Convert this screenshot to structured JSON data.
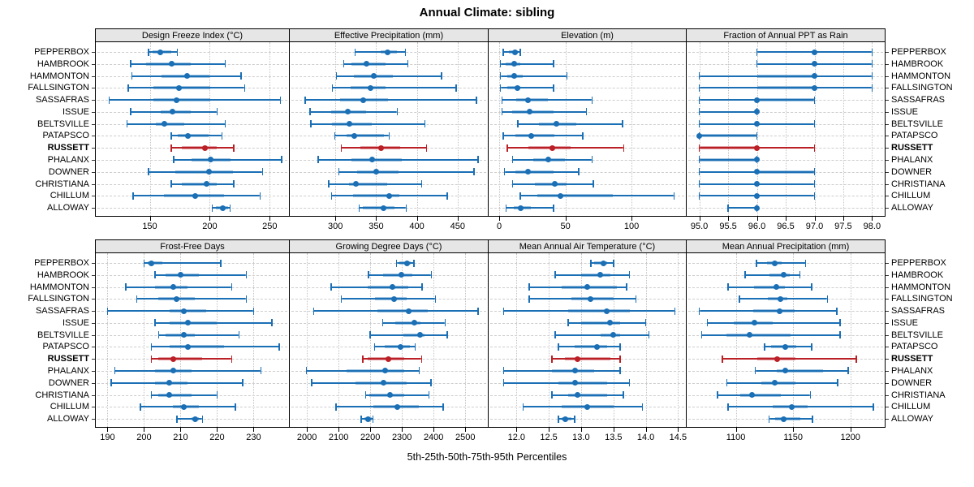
{
  "chart_data": {
    "type": "dotplot-trellis",
    "title": "Annual Climate: sibling",
    "footer": "5th-25th-50th-75th-95th Percentiles",
    "percentiles": [
      "5th",
      "25th",
      "50th",
      "75th",
      "95th"
    ],
    "legend_position": "none",
    "grid": "dashed horizontal per site, dotted vertical at ticks",
    "sites": [
      "PEPPERBOX",
      "HAMBROOK",
      "HAMMONTON",
      "FALLSINGTON",
      "SASSAFRAS",
      "ISSUE",
      "BELTSVILLE",
      "PATAPSCO",
      "RUSSETT",
      "PHALANX",
      "DOWNER",
      "CHRISTIANA",
      "CHILLUM",
      "ALLOWAY"
    ],
    "highlight_site": "RUSSETT",
    "colors": {
      "point": "#1b6fb5",
      "band": "rgba(27,111,181,0.42)",
      "highlight_point": "#bb2026",
      "highlight_band": "rgba(187,32,38,0.42)",
      "strip_bg": "#e6e6e6",
      "border": "#000000"
    },
    "panels": [
      {
        "title": "Design Freeze Index (°C)",
        "grid_row": 0,
        "grid_col": 0,
        "xlim": [
          105,
          266
        ],
        "ticks": [
          150,
          200,
          250
        ],
        "tick_labels": [
          "150",
          "200",
          "250"
        ],
        "values": [
          [
            149,
            152,
            159,
            168,
            173
          ],
          [
            134,
            147,
            168,
            184,
            213
          ],
          [
            135,
            160,
            181,
            200,
            226
          ],
          [
            132,
            153,
            174,
            200,
            229
          ],
          [
            116,
            153,
            172,
            200,
            259
          ],
          [
            134,
            159,
            169,
            184,
            206
          ],
          [
            131,
            155,
            162,
            179,
            213
          ],
          [
            168,
            173,
            182,
            199,
            210
          ],
          [
            168,
            177,
            196,
            206,
            220
          ],
          [
            170,
            185,
            201,
            217,
            260
          ],
          [
            149,
            171,
            199,
            219,
            244
          ],
          [
            168,
            177,
            197,
            206,
            220
          ],
          [
            136,
            162,
            188,
            212,
            242
          ],
          [
            202,
            205,
            211,
            215,
            217
          ]
        ]
      },
      {
        "title": "Effective Precipitation (mm)",
        "grid_row": 0,
        "grid_col": 1,
        "xlim": [
          244,
          487
        ],
        "ticks": [
          300,
          350,
          400,
          450
        ],
        "tick_labels": [
          "300",
          "350",
          "400",
          "450"
        ],
        "values": [
          [
            324,
            355,
            364,
            375,
            386
          ],
          [
            310,
            320,
            338,
            362,
            389
          ],
          [
            301,
            323,
            347,
            371,
            430
          ],
          [
            296,
            319,
            343,
            362,
            448
          ],
          [
            263,
            306,
            334,
            365,
            473
          ],
          [
            269,
            295,
            315,
            338,
            376
          ],
          [
            270,
            296,
            317,
            345,
            410
          ],
          [
            299,
            314,
            323,
            360,
            366
          ],
          [
            307,
            331,
            356,
            379,
            412
          ],
          [
            279,
            320,
            345,
            381,
            475
          ],
          [
            304,
            327,
            350,
            378,
            470
          ],
          [
            292,
            317,
            325,
            364,
            406
          ],
          [
            295,
            322,
            366,
            379,
            437
          ],
          [
            329,
            334,
            359,
            372,
            387
          ]
        ]
      },
      {
        "title": "Elevation (m)",
        "grid_row": 0,
        "grid_col": 2,
        "xlim": [
          -8,
          141
        ],
        "ticks": [
          0,
          50,
          100
        ],
        "tick_labels": [
          "0",
          "50",
          "100"
        ],
        "values": [
          [
            3,
            7,
            12,
            14,
            16
          ],
          [
            1,
            5,
            11,
            16,
            41
          ],
          [
            1,
            6,
            11,
            18,
            51
          ],
          [
            1,
            6,
            14,
            16,
            41
          ],
          [
            2,
            13,
            22,
            37,
            70
          ],
          [
            2,
            10,
            23,
            41,
            66
          ],
          [
            14,
            30,
            43,
            58,
            93
          ],
          [
            3,
            12,
            24,
            42,
            63
          ],
          [
            6,
            22,
            40,
            54,
            94
          ],
          [
            10,
            26,
            37,
            50,
            70
          ],
          [
            4,
            12,
            22,
            41,
            60
          ],
          [
            10,
            27,
            42,
            51,
            71
          ],
          [
            16,
            29,
            46,
            86,
            132
          ],
          [
            5,
            11,
            16,
            24,
            41
          ]
        ]
      },
      {
        "title": "Fraction of Annual PPT as Rain",
        "grid_row": 0,
        "grid_col": 3,
        "xlim": [
          94.78,
          98.22
        ],
        "ticks": [
          95.0,
          95.5,
          96.0,
          96.5,
          97.0,
          97.5,
          98.0
        ],
        "tick_labels": [
          "95.0",
          "95.5",
          "96.0",
          "96.5",
          "97.0",
          "97.5",
          "98.0"
        ],
        "values": [
          [
            96,
            97,
            97,
            97,
            98
          ],
          [
            96,
            97,
            97,
            97,
            98
          ],
          [
            95,
            96,
            97,
            97,
            98
          ],
          [
            95,
            96,
            97,
            97,
            98
          ],
          [
            95,
            96,
            96,
            97,
            97
          ],
          [
            95,
            96,
            96,
            96,
            96
          ],
          [
            95,
            96,
            96,
            96,
            97
          ],
          [
            95,
            95,
            95,
            96,
            96
          ],
          [
            95,
            95,
            96,
            96,
            97
          ],
          [
            95,
            95,
            96,
            96,
            96
          ],
          [
            95,
            96,
            96,
            97,
            97
          ],
          [
            95,
            96,
            96,
            96,
            97
          ],
          [
            95,
            96,
            96,
            96,
            97
          ],
          [
            95.5,
            96,
            96,
            96,
            96
          ]
        ]
      },
      {
        "title": "Frost-Free Days",
        "grid_row": 1,
        "grid_col": 0,
        "xlim": [
          186.8,
          239.7
        ],
        "ticks": [
          190,
          200,
          210,
          220,
          230
        ],
        "tick_labels": [
          "190",
          "200",
          "210",
          "220",
          "230"
        ],
        "values": [
          [
            200,
            201,
            202,
            205,
            221
          ],
          [
            203,
            206,
            210,
            215,
            228
          ],
          [
            195,
            203,
            208,
            212,
            224
          ],
          [
            198,
            204,
            209,
            214,
            228
          ],
          [
            190,
            207,
            211,
            217,
            230
          ],
          [
            203,
            207,
            212,
            220,
            235
          ],
          [
            204,
            206,
            211,
            214,
            226
          ],
          [
            202,
            207,
            212,
            222,
            237
          ],
          [
            202,
            204,
            208,
            216,
            224
          ],
          [
            192,
            203,
            208,
            213,
            232
          ],
          [
            191,
            203,
            207,
            212,
            227
          ],
          [
            202,
            204,
            207,
            213,
            220
          ],
          [
            199,
            208,
            211,
            215,
            225
          ],
          [
            209,
            213,
            214,
            215,
            216
          ]
        ]
      },
      {
        "title": "Growing Degree Days (°C)",
        "grid_row": 1,
        "grid_col": 1,
        "xlim": [
          1946,
          2571
        ],
        "ticks": [
          2000,
          2100,
          2200,
          2300,
          2400,
          2500
        ],
        "tick_labels": [
          "2000",
          "2100",
          "2200",
          "2300",
          "2400",
          "2500"
        ],
        "values": [
          [
            2283,
            2291,
            2315,
            2328,
            2338
          ],
          [
            2194,
            2240,
            2298,
            2332,
            2393
          ],
          [
            2077,
            2192,
            2270,
            2321,
            2364
          ],
          [
            2109,
            2215,
            2274,
            2315,
            2406
          ],
          [
            2021,
            2222,
            2320,
            2381,
            2540
          ],
          [
            2239,
            2279,
            2338,
            2358,
            2436
          ],
          [
            2200,
            2304,
            2358,
            2372,
            2443
          ],
          [
            2213,
            2245,
            2296,
            2325,
            2342
          ],
          [
            2177,
            2192,
            2257,
            2308,
            2362
          ],
          [
            1998,
            2126,
            2247,
            2308,
            2355
          ],
          [
            2015,
            2154,
            2243,
            2315,
            2392
          ],
          [
            2185,
            2198,
            2262,
            2307,
            2385
          ],
          [
            2092,
            2209,
            2286,
            2353,
            2430
          ],
          [
            2171,
            2181,
            2194,
            2205,
            2209
          ]
        ]
      },
      {
        "title": "Mean Annual Air Temperature (°C)",
        "grid_row": 1,
        "grid_col": 2,
        "xlim": [
          11.57,
          14.62
        ],
        "ticks": [
          12.0,
          12.5,
          13.0,
          13.5,
          14.0,
          14.5
        ],
        "tick_labels": [
          "12.0",
          "12.5",
          "13.0",
          "13.5",
          "14.0",
          "14.5"
        ],
        "values": [
          [
            13.15,
            13.2,
            13.35,
            13.4,
            13.5
          ],
          [
            12.6,
            13.0,
            13.3,
            13.45,
            13.75
          ],
          [
            12.2,
            12.7,
            13.1,
            13.55,
            13.7
          ],
          [
            12.2,
            12.85,
            13.15,
            13.5,
            13.85
          ],
          [
            11.8,
            12.8,
            13.4,
            13.75,
            14.45
          ],
          [
            12.8,
            13.0,
            13.45,
            13.6,
            14.0
          ],
          [
            12.6,
            13.3,
            13.5,
            13.6,
            14.05
          ],
          [
            12.65,
            12.9,
            13.25,
            13.4,
            13.6
          ],
          [
            12.55,
            12.75,
            12.95,
            13.45,
            13.6
          ],
          [
            11.8,
            12.55,
            12.9,
            13.2,
            13.6
          ],
          [
            11.8,
            12.65,
            12.9,
            13.4,
            13.75
          ],
          [
            12.55,
            12.8,
            12.95,
            13.4,
            13.65
          ],
          [
            12.1,
            12.7,
            13.1,
            13.5,
            13.95
          ],
          [
            12.65,
            12.7,
            12.75,
            12.85,
            12.9
          ]
        ]
      },
      {
        "title": "Mean Annual Precipitation (mm)",
        "grid_row": 1,
        "grid_col": 3,
        "xlim": [
          1057,
          1230
        ],
        "ticks": [
          1100,
          1150,
          1200
        ],
        "tick_labels": [
          "1100",
          "1150",
          "1200"
        ],
        "values": [
          [
            1118,
            1127,
            1134,
            1140,
            1161
          ],
          [
            1108,
            1129,
            1142,
            1147,
            1156
          ],
          [
            1093,
            1116,
            1135,
            1143,
            1166
          ],
          [
            1103,
            1128,
            1139,
            1145,
            1180
          ],
          [
            1068,
            1115,
            1138,
            1151,
            1188
          ],
          [
            1075,
            1098,
            1116,
            1132,
            1191
          ],
          [
            1070,
            1092,
            1112,
            1148,
            1191
          ],
          [
            1125,
            1131,
            1143,
            1153,
            1166
          ],
          [
            1088,
            1119,
            1136,
            1152,
            1205
          ],
          [
            1117,
            1136,
            1143,
            1176,
            1198
          ],
          [
            1092,
            1122,
            1134,
            1152,
            1189
          ],
          [
            1084,
            1104,
            1114,
            1139,
            1165
          ],
          [
            1093,
            1132,
            1149,
            1163,
            1220
          ],
          [
            1129,
            1134,
            1142,
            1156,
            1167
          ]
        ]
      }
    ]
  }
}
